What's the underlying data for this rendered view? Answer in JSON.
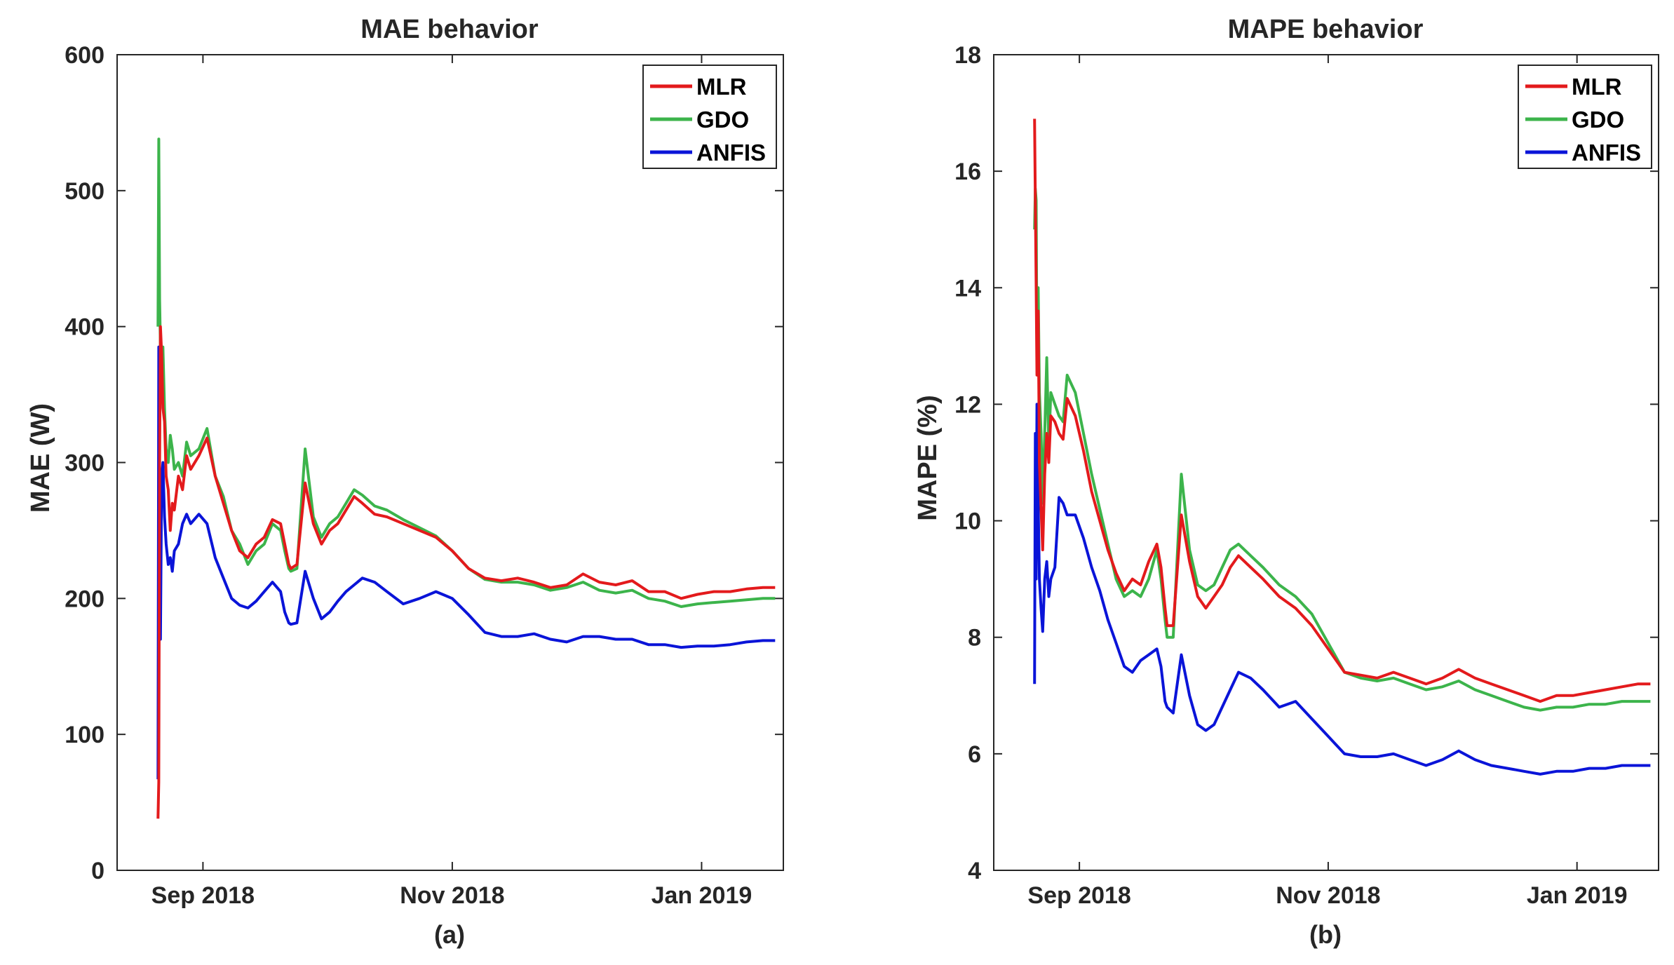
{
  "chart_data": [
    {
      "type": "line",
      "title": "MAE behavior",
      "xlabel": "(a)",
      "ylabel": "MAE (W)",
      "ylim": [
        0,
        600
      ],
      "yticks": [
        0,
        100,
        200,
        300,
        400,
        500,
        600
      ],
      "xlim_days": [
        -10,
        153
      ],
      "xticks": [
        {
          "day": 11,
          "label": "Sep 2018"
        },
        {
          "day": 72,
          "label": "Nov 2018"
        },
        {
          "day": 133,
          "label": "Jan 2019"
        }
      ],
      "legend_position": "top-right",
      "series": [
        {
          "name": "MLR",
          "color": "#e31a1c",
          "x": [
            0,
            0.2,
            0.4,
            0.6,
            0.9,
            1.2,
            1.6,
            2,
            2.5,
            3,
            3.5,
            4,
            5,
            6,
            7,
            8,
            10,
            12,
            14,
            16,
            18,
            20,
            22,
            24,
            26,
            28,
            30,
            31,
            32,
            32.5,
            34,
            36,
            38,
            40,
            42,
            44,
            46,
            48,
            50,
            53,
            56,
            60,
            64,
            68,
            72,
            76,
            80,
            84,
            88,
            92,
            96,
            100,
            104,
            108,
            112,
            116,
            120,
            124,
            128,
            132,
            136,
            140,
            144,
            148,
            151
          ],
          "y": [
            38,
            65,
            300,
            400,
            380,
            340,
            330,
            290,
            280,
            250,
            270,
            265,
            290,
            280,
            305,
            295,
            305,
            318,
            290,
            270,
            250,
            235,
            230,
            240,
            245,
            258,
            255,
            240,
            225,
            222,
            225,
            285,
            255,
            240,
            250,
            255,
            265,
            275,
            270,
            262,
            260,
            255,
            250,
            245,
            235,
            222,
            215,
            213,
            215,
            212,
            208,
            210,
            218,
            212,
            210,
            213,
            205,
            205,
            200,
            203,
            205,
            205,
            207,
            208,
            208
          ]
        },
        {
          "name": "GDO",
          "color": "#3cb44b",
          "x": [
            0,
            0.2,
            0.4,
            0.6,
            0.9,
            1.2,
            1.6,
            2,
            2.5,
            3,
            3.5,
            4,
            5,
            6,
            7,
            8,
            10,
            12,
            14,
            16,
            18,
            20,
            22,
            24,
            26,
            28,
            30,
            31,
            32,
            32.5,
            34,
            36,
            38,
            40,
            42,
            44,
            46,
            48,
            50,
            53,
            56,
            60,
            64,
            68,
            72,
            76,
            80,
            84,
            88,
            92,
            96,
            100,
            104,
            108,
            112,
            116,
            120,
            124,
            128,
            132,
            136,
            140,
            144,
            148,
            151
          ],
          "y": [
            400,
            538,
            420,
            385,
            360,
            385,
            340,
            310,
            300,
            320,
            310,
            295,
            300,
            290,
            315,
            305,
            310,
            325,
            290,
            275,
            250,
            240,
            225,
            235,
            240,
            255,
            250,
            235,
            222,
            220,
            222,
            310,
            260,
            245,
            255,
            260,
            270,
            280,
            276,
            268,
            265,
            258,
            252,
            246,
            235,
            222,
            214,
            212,
            212,
            210,
            206,
            208,
            212,
            206,
            204,
            206,
            200,
            198,
            194,
            196,
            197,
            198,
            199,
            200,
            200
          ]
        },
        {
          "name": "ANFIS",
          "color": "#0a14d8",
          "x": [
            0,
            0.2,
            0.4,
            0.6,
            0.9,
            1.2,
            1.6,
            2,
            2.5,
            3,
            3.5,
            4,
            5,
            6,
            7,
            8,
            10,
            12,
            14,
            16,
            18,
            20,
            22,
            24,
            26,
            28,
            30,
            31,
            32,
            32.5,
            34,
            36,
            38,
            40,
            42,
            44,
            46,
            48,
            50,
            53,
            56,
            60,
            64,
            68,
            72,
            76,
            80,
            84,
            88,
            92,
            96,
            100,
            104,
            108,
            112,
            116,
            120,
            124,
            128,
            132,
            136,
            140,
            144,
            148,
            151
          ],
          "y": [
            67,
            385,
            180,
            170,
            290,
            300,
            260,
            240,
            225,
            230,
            220,
            235,
            240,
            255,
            262,
            255,
            262,
            255,
            230,
            215,
            200,
            195,
            193,
            198,
            205,
            212,
            205,
            190,
            182,
            181,
            182,
            220,
            200,
            185,
            190,
            198,
            205,
            210,
            215,
            212,
            205,
            196,
            200,
            205,
            200,
            188,
            175,
            172,
            172,
            174,
            170,
            168,
            172,
            172,
            170,
            170,
            166,
            166,
            164,
            165,
            165,
            166,
            168,
            169,
            169
          ]
        }
      ]
    },
    {
      "type": "line",
      "title": "MAPE behavior",
      "xlabel": "(b)",
      "ylabel": "MAPE (%)",
      "ylim": [
        4,
        18
      ],
      "yticks": [
        4,
        6,
        8,
        10,
        12,
        14,
        16,
        18
      ],
      "xlim_days": [
        -10,
        153
      ],
      "xticks": [
        {
          "day": 11,
          "label": "Sep 2018"
        },
        {
          "day": 72,
          "label": "Nov 2018"
        },
        {
          "day": 133,
          "label": "Jan 2019"
        }
      ],
      "legend_position": "top-right",
      "series": [
        {
          "name": "MLR",
          "color": "#e31a1c",
          "x": [
            0,
            0.2,
            0.4,
            0.6,
            0.9,
            1.2,
            1.6,
            2,
            2.5,
            3,
            3.5,
            4,
            5,
            6,
            7,
            8,
            10,
            12,
            14,
            16,
            18,
            20,
            22,
            24,
            26,
            28,
            30,
            31,
            32,
            32.5,
            34,
            36,
            38,
            40,
            42,
            44,
            46,
            48,
            50,
            53,
            56,
            60,
            64,
            68,
            72,
            76,
            80,
            84,
            88,
            92,
            96,
            100,
            104,
            108,
            112,
            116,
            120,
            124,
            128,
            132,
            136,
            140,
            144,
            148,
            151
          ],
          "y": [
            16.9,
            15.5,
            14.0,
            12.5,
            13.6,
            11.0,
            10.2,
            9.5,
            10.8,
            11.5,
            11.0,
            11.8,
            11.7,
            11.5,
            11.4,
            12.1,
            11.8,
            11.2,
            10.5,
            10.0,
            9.5,
            9.1,
            8.8,
            9.0,
            8.9,
            9.3,
            9.6,
            9.2,
            8.5,
            8.2,
            8.2,
            10.1,
            9.3,
            8.7,
            8.5,
            8.7,
            8.9,
            9.2,
            9.4,
            9.2,
            9.0,
            8.7,
            8.5,
            8.2,
            7.8,
            7.4,
            7.35,
            7.3,
            7.4,
            7.3,
            7.2,
            7.3,
            7.45,
            7.3,
            7.2,
            7.1,
            7.0,
            6.9,
            7.0,
            7.0,
            7.05,
            7.1,
            7.15,
            7.2,
            7.2
          ]
        },
        {
          "name": "GDO",
          "color": "#3cb44b",
          "x": [
            0,
            0.2,
            0.4,
            0.6,
            0.9,
            1.2,
            1.6,
            2,
            2.5,
            3,
            3.5,
            4,
            5,
            6,
            7,
            8,
            10,
            12,
            14,
            16,
            18,
            20,
            22,
            24,
            26,
            28,
            30,
            31,
            32,
            32.5,
            34,
            36,
            38,
            40,
            42,
            44,
            46,
            48,
            50,
            53,
            56,
            60,
            64,
            68,
            72,
            76,
            80,
            84,
            88,
            92,
            96,
            100,
            104,
            108,
            112,
            116,
            120,
            124,
            128,
            132,
            136,
            140,
            144,
            148,
            151
          ],
          "y": [
            15.0,
            15.7,
            15.5,
            12.8,
            14.0,
            12.2,
            11.5,
            10.3,
            11.5,
            12.8,
            11.3,
            12.2,
            12.0,
            11.8,
            11.7,
            12.5,
            12.2,
            11.5,
            10.8,
            10.2,
            9.6,
            9.0,
            8.7,
            8.8,
            8.7,
            9.0,
            9.5,
            9.0,
            8.3,
            8.0,
            8.0,
            10.8,
            9.5,
            8.9,
            8.8,
            8.9,
            9.2,
            9.5,
            9.6,
            9.4,
            9.2,
            8.9,
            8.7,
            8.4,
            7.9,
            7.4,
            7.3,
            7.25,
            7.3,
            7.2,
            7.1,
            7.15,
            7.25,
            7.1,
            7.0,
            6.9,
            6.8,
            6.75,
            6.8,
            6.8,
            6.85,
            6.85,
            6.9,
            6.9,
            6.9
          ]
        },
        {
          "name": "ANFIS",
          "color": "#0a14d8",
          "x": [
            0,
            0.2,
            0.4,
            0.6,
            0.9,
            1.2,
            1.6,
            2,
            2.5,
            3,
            3.5,
            4,
            5,
            6,
            7,
            8,
            10,
            12,
            14,
            16,
            18,
            20,
            22,
            24,
            26,
            28,
            30,
            31,
            32,
            32.5,
            34,
            36,
            38,
            40,
            42,
            44,
            46,
            48,
            50,
            53,
            56,
            60,
            64,
            68,
            72,
            76,
            80,
            84,
            88,
            92,
            96,
            100,
            104,
            108,
            112,
            116,
            120,
            124,
            128,
            132,
            136,
            140,
            144,
            148,
            151
          ],
          "y": [
            7.2,
            11.5,
            9.0,
            12.0,
            10.3,
            9.0,
            8.5,
            8.1,
            9.0,
            9.3,
            8.7,
            9.0,
            9.2,
            10.4,
            10.3,
            10.1,
            10.1,
            9.7,
            9.2,
            8.8,
            8.3,
            7.9,
            7.5,
            7.4,
            7.6,
            7.7,
            7.8,
            7.5,
            6.9,
            6.8,
            6.7,
            7.7,
            7.0,
            6.5,
            6.4,
            6.5,
            6.8,
            7.1,
            7.4,
            7.3,
            7.1,
            6.8,
            6.9,
            6.6,
            6.3,
            6.0,
            5.95,
            5.95,
            6.0,
            5.9,
            5.8,
            5.9,
            6.05,
            5.9,
            5.8,
            5.75,
            5.7,
            5.65,
            5.7,
            5.7,
            5.75,
            5.75,
            5.8,
            5.8,
            5.8
          ]
        }
      ]
    }
  ]
}
